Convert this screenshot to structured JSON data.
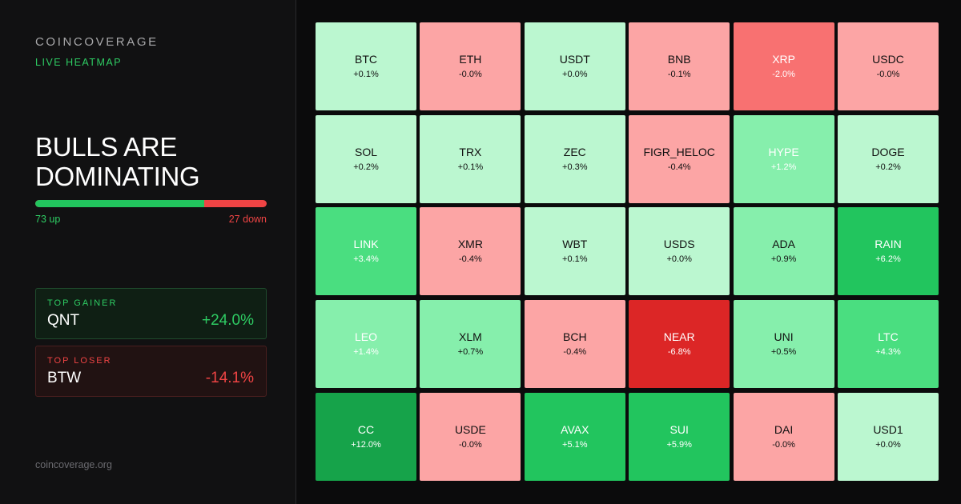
{
  "brand": "COINCOVERAGE",
  "subtitle": "LIVE HEATMAP",
  "headline": "BULLS ARE DOMINATING",
  "breadth": {
    "up": 73,
    "down": 27,
    "up_label": "73 up",
    "down_label": "27 down"
  },
  "top_gainer": {
    "label": "TOP GAINER",
    "symbol": "QNT",
    "change": "+24.0%"
  },
  "top_loser": {
    "label": "TOP LOSER",
    "symbol": "BTW",
    "change": "-14.1%"
  },
  "footer": "coincoverage.org",
  "colors": {
    "positive_accent": "#2ecc63",
    "negative_accent": "#ef4444"
  },
  "heatmap": [
    {
      "symbol": "BTC",
      "change": "+0.1%",
      "bg": "#bbf7d0",
      "fg": "#111111"
    },
    {
      "symbol": "ETH",
      "change": "-0.0%",
      "bg": "#fca5a5",
      "fg": "#111111"
    },
    {
      "symbol": "USDT",
      "change": "+0.0%",
      "bg": "#bbf7d0",
      "fg": "#111111"
    },
    {
      "symbol": "BNB",
      "change": "-0.1%",
      "bg": "#fca5a5",
      "fg": "#111111"
    },
    {
      "symbol": "XRP",
      "change": "-2.0%",
      "bg": "#f87171",
      "fg": "#ffffff"
    },
    {
      "symbol": "USDC",
      "change": "-0.0%",
      "bg": "#fca5a5",
      "fg": "#111111"
    },
    {
      "symbol": "SOL",
      "change": "+0.2%",
      "bg": "#bbf7d0",
      "fg": "#111111"
    },
    {
      "symbol": "TRX",
      "change": "+0.1%",
      "bg": "#bbf7d0",
      "fg": "#111111"
    },
    {
      "symbol": "ZEC",
      "change": "+0.3%",
      "bg": "#bbf7d0",
      "fg": "#111111"
    },
    {
      "symbol": "FIGR_HELOC",
      "change": "-0.4%",
      "bg": "#fca5a5",
      "fg": "#111111"
    },
    {
      "symbol": "HYPE",
      "change": "+1.2%",
      "bg": "#86efac",
      "fg": "#ffffff"
    },
    {
      "symbol": "DOGE",
      "change": "+0.2%",
      "bg": "#bbf7d0",
      "fg": "#111111"
    },
    {
      "symbol": "LINK",
      "change": "+3.4%",
      "bg": "#4ade80",
      "fg": "#ffffff"
    },
    {
      "symbol": "XMR",
      "change": "-0.4%",
      "bg": "#fca5a5",
      "fg": "#111111"
    },
    {
      "symbol": "WBT",
      "change": "+0.1%",
      "bg": "#bbf7d0",
      "fg": "#111111"
    },
    {
      "symbol": "USDS",
      "change": "+0.0%",
      "bg": "#bbf7d0",
      "fg": "#111111"
    },
    {
      "symbol": "ADA",
      "change": "+0.9%",
      "bg": "#86efac",
      "fg": "#111111"
    },
    {
      "symbol": "RAIN",
      "change": "+6.2%",
      "bg": "#22c55e",
      "fg": "#ffffff"
    },
    {
      "symbol": "LEO",
      "change": "+1.4%",
      "bg": "#86efac",
      "fg": "#ffffff"
    },
    {
      "symbol": "XLM",
      "change": "+0.7%",
      "bg": "#86efac",
      "fg": "#111111"
    },
    {
      "symbol": "BCH",
      "change": "-0.4%",
      "bg": "#fca5a5",
      "fg": "#111111"
    },
    {
      "symbol": "NEAR",
      "change": "-6.8%",
      "bg": "#dc2626",
      "fg": "#ffffff"
    },
    {
      "symbol": "UNI",
      "change": "+0.5%",
      "bg": "#86efac",
      "fg": "#111111"
    },
    {
      "symbol": "LTC",
      "change": "+4.3%",
      "bg": "#4ade80",
      "fg": "#ffffff"
    },
    {
      "symbol": "CC",
      "change": "+12.0%",
      "bg": "#16a34a",
      "fg": "#ffffff"
    },
    {
      "symbol": "USDE",
      "change": "-0.0%",
      "bg": "#fca5a5",
      "fg": "#111111"
    },
    {
      "symbol": "AVAX",
      "change": "+5.1%",
      "bg": "#22c55e",
      "fg": "#ffffff"
    },
    {
      "symbol": "SUI",
      "change": "+5.9%",
      "bg": "#22c55e",
      "fg": "#ffffff"
    },
    {
      "symbol": "DAI",
      "change": "-0.0%",
      "bg": "#fca5a5",
      "fg": "#111111"
    },
    {
      "symbol": "USD1",
      "change": "+0.0%",
      "bg": "#bbf7d0",
      "fg": "#111111"
    }
  ]
}
